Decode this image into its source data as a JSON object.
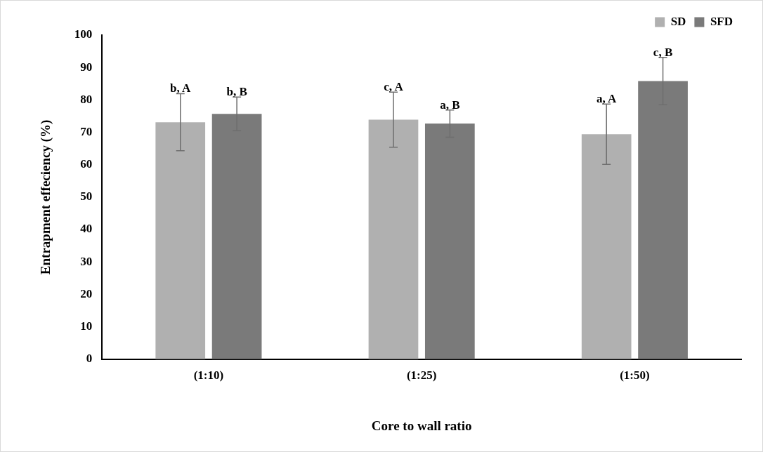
{
  "chart_data": {
    "type": "bar",
    "xlabel": "Core to wall ratio",
    "ylabel": "Entrapment effeciency (%)",
    "categories": [
      "(1:10)",
      "(1:25)",
      "(1:50)"
    ],
    "series": [
      {
        "name": "SD",
        "color": "#b0b0b0",
        "values": [
          73.1,
          73.9,
          69.4
        ],
        "errors": [
          8.8,
          8.5,
          9.3
        ],
        "value_labels": [
          "b, A",
          "c, A",
          "a, A"
        ]
      },
      {
        "name": "SFD",
        "color": "#7a7a7a",
        "values": [
          75.7,
          72.7,
          85.8
        ],
        "errors": [
          5.2,
          4.2,
          7.3
        ],
        "value_labels": [
          "b, B",
          "a, B",
          "c, B"
        ]
      }
    ],
    "ylim": [
      0,
      100
    ],
    "yticks": [
      0,
      10,
      20,
      30,
      40,
      50,
      60,
      70,
      80,
      90,
      100
    ],
    "grid": false,
    "legend": "top right"
  }
}
